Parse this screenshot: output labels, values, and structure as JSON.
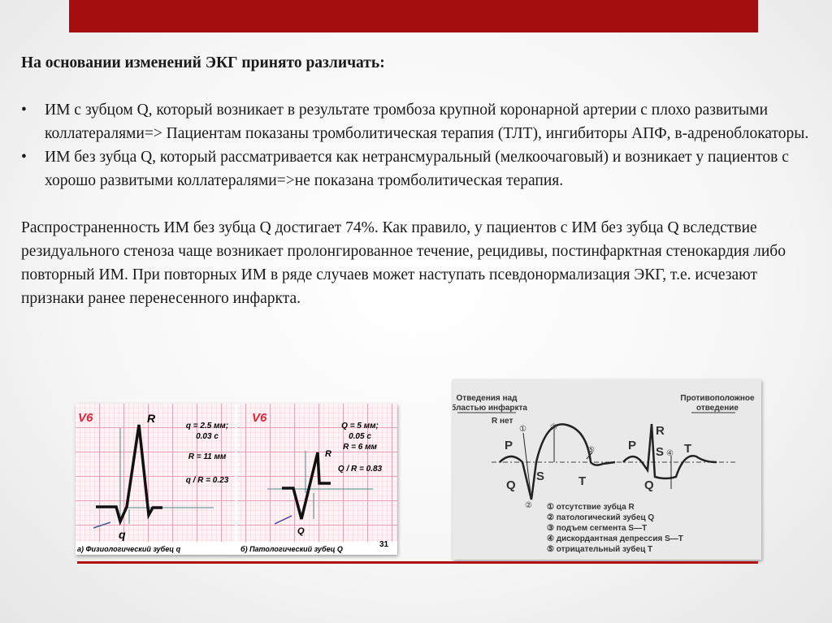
{
  "slide": {
    "heading": "На основании изменений ЭКГ принято различать:",
    "bullets": [
      {
        "symbol": "•",
        "text": "ИМ с зубцом Q, который возникает в результате тромбоза крупной коронарной артерии с плохо развитыми коллатералями=> Пациентам показаны тромболитическая терапия (ТЛТ), ингибиторы АПФ, в-адреноблокаторы."
      },
      {
        "symbol": "•",
        "text": "ИМ без зубца Q, который рассматривается как нетрансмуральный (мелкоочаговый) и возникает у пациентов с хорошо развитыми коллатералями=>не показана тромболитическая терапия."
      }
    ],
    "paragraph": "Распространенность ИМ без зубца Q достигает 74%. Как правило, у пациентов с ИМ без зубца Q вследствие резидуального стеноза чаще возникает пролонгированное течение, рецидивы, постинфарктная стенокардия либо повторный ИМ. При повторных ИМ в ряде случаев может наступать псевдонормализация ЭКГ, т.е. исчезают признаки ранее перенесенного инфаркта.",
    "accent_color": "#a50e0e"
  },
  "figure_left": {
    "panel_a": {
      "lead": "V6",
      "r_label": "R",
      "q_label": "q",
      "values": [
        "q = 2.5 мм;",
        "0.03 с",
        "R = 11 мм",
        "q / R = 0.23"
      ],
      "caption": "а) Физиологический зубец q"
    },
    "panel_b": {
      "lead": "V6",
      "r_label": "R",
      "q_label": "Q",
      "values": [
        "Q = 5 мм;",
        "0.05 с",
        "R = 6 мм",
        "Q / R = 0.83"
      ],
      "caption": "б) Патологический зубец Q",
      "page_number": "31"
    }
  },
  "figure_right": {
    "title_left": [
      "Отведения над",
      "областью инфаркта"
    ],
    "title_right": [
      "Противоположное",
      "отведение"
    ],
    "r_absent": "R нет",
    "wave_labels": {
      "P": "P",
      "Q": "Q",
      "S": "S",
      "T": "T",
      "R": "R"
    },
    "markers": [
      "①",
      "②",
      "③",
      "④",
      "⑤"
    ],
    "legend": [
      "① отсутствие зубца R",
      "② патологический зубец Q",
      "③ подъем сегмента S—T",
      "④ дискордантная депрессия S—T",
      "⑤ отрицательный зубец T"
    ]
  }
}
